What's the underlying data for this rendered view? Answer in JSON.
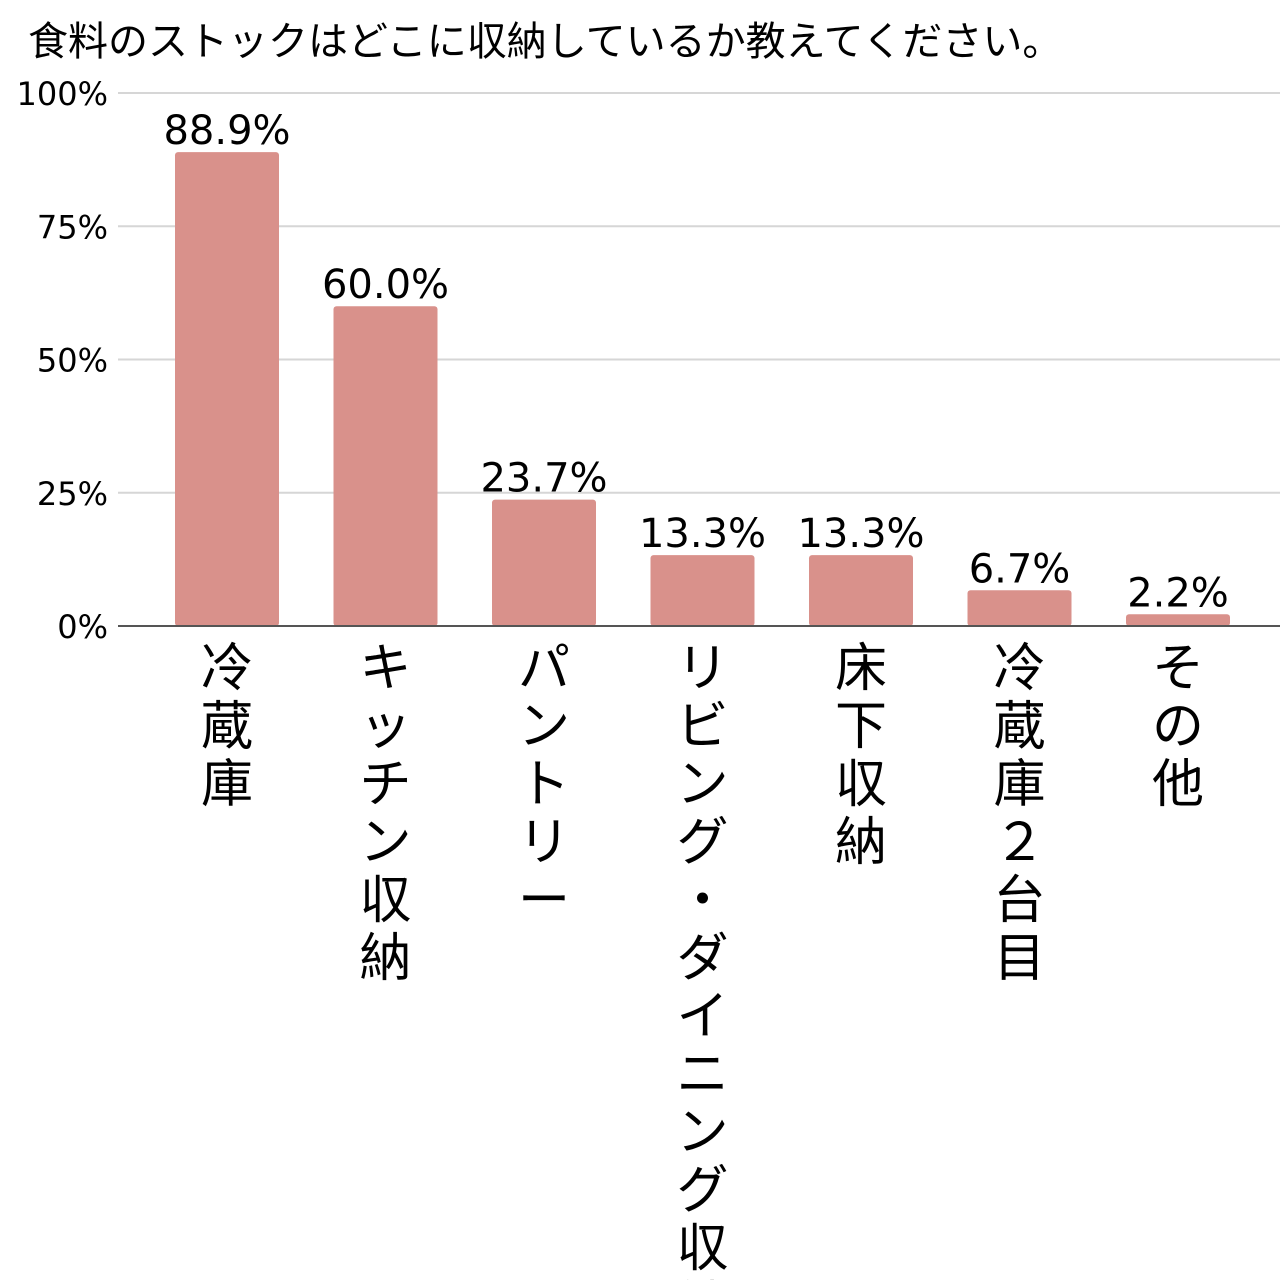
{
  "chart_data": {
    "type": "bar",
    "title": "食料のストックはどこに収納しているか教えてください。",
    "categories": [
      "冷蔵庫",
      "キッチン収納",
      "パントリー",
      "リビング・ダイニング収納",
      "床下収納",
      "冷蔵庫２台目",
      "その他"
    ],
    "values": [
      88.9,
      60.0,
      23.7,
      13.3,
      13.3,
      6.7,
      2.2
    ],
    "value_labels": [
      "88.9%",
      "60.0%",
      "23.7%",
      "13.3%",
      "13.3%",
      "6.7%",
      "2.2%"
    ],
    "y_ticks": [
      "0%",
      "25%",
      "50%",
      "75%",
      "100%"
    ],
    "y_tick_values": [
      0,
      25,
      50,
      75,
      100
    ],
    "ylim": [
      0,
      100
    ],
    "xlabel": "",
    "ylabel": "",
    "grid": true,
    "legend": "none",
    "bar_color": "#d9918b",
    "grid_color": "#d6d6d6",
    "axis_color": "#555555"
  }
}
